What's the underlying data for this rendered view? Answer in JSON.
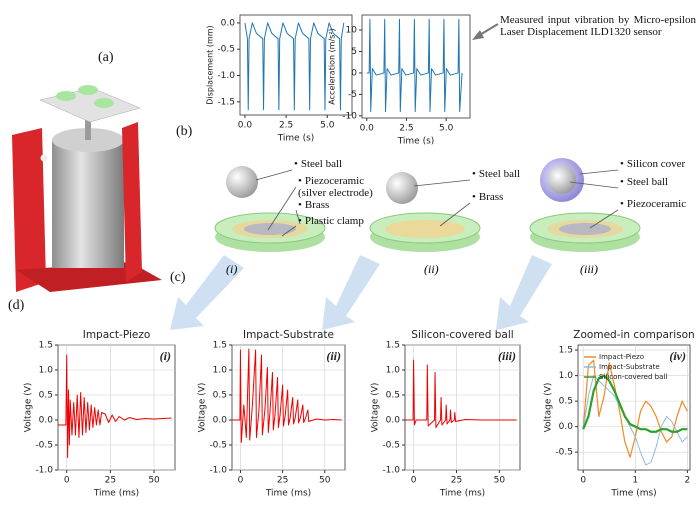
{
  "figure": {
    "panel_labels": [
      "(a)",
      "(b)",
      "(c)",
      "(d)"
    ],
    "sensor_note": "Measured input vibration by Micro-epsilon Laser Displacement ILD1320 sensor",
    "diagrams": [
      {
        "labels": [
          "Steel ball",
          "Piezoceramic (silver electrode)",
          "Brass",
          "Plastic clamp"
        ],
        "tag": "(i)"
      },
      {
        "labels": [
          "Steel ball",
          "Brass"
        ],
        "tag": "(ii)"
      },
      {
        "labels": [
          "Silicon cover",
          "Steel ball",
          "Piezoceramic"
        ],
        "tag": "(iii)"
      }
    ]
  },
  "chart_data": [
    {
      "type": "line",
      "xlabel": "Time (s)",
      "ylabel": "Displacement (mm)",
      "color": "#1f77b4",
      "xlim": [
        -0.3,
        6.5
      ],
      "ylim": [
        -1.75,
        0.15
      ],
      "xticks": [
        {
          "value": 0,
          "label": "0.0"
        },
        2.5,
        {
          "value": 5,
          "label": "5.0"
        }
      ],
      "yticks": [
        {
          "value": 0,
          "label": "0.0"
        },
        -0.5,
        {
          "value": -1,
          "label": "-1.0"
        },
        -1.5
      ],
      "x": [
        0,
        0.15,
        0.2,
        0.25,
        0.45,
        0.7,
        1.08,
        1.13,
        1.18,
        1.38,
        1.63,
        2.01,
        2.06,
        2.11,
        2.31,
        2.56,
        2.95,
        3.0,
        3.05,
        3.25,
        3.5,
        3.88,
        3.93,
        3.98,
        4.18,
        4.43,
        4.81,
        4.86,
        4.91,
        5.11,
        5.36,
        5.75,
        5.8,
        5.85,
        6.0
      ],
      "values": [
        0,
        -0.3,
        -1.65,
        -0.3,
        0,
        -0.2,
        -0.3,
        -1.65,
        -0.3,
        0,
        -0.2,
        -0.3,
        -1.65,
        -0.3,
        0,
        -0.2,
        -0.3,
        -1.65,
        -0.3,
        0,
        -0.2,
        -0.3,
        -1.65,
        -0.3,
        0,
        -0.2,
        -0.3,
        -1.65,
        -0.3,
        0,
        -0.2,
        -0.3,
        -1.65,
        -0.3,
        0
      ]
    },
    {
      "type": "line",
      "xlabel": "Time (s)",
      "ylabel": "Acceleration (m/s²)",
      "color": "#1f77b4",
      "xlim": [
        -0.3,
        6.5
      ],
      "ylim": [
        -10.5,
        13.5
      ],
      "xticks": [
        {
          "value": 0,
          "label": "0.0"
        },
        2.5,
        {
          "value": 5,
          "label": "5.0"
        }
      ],
      "yticks": [
        -10,
        -5,
        0,
        5,
        10
      ],
      "x": [
        0,
        0.15,
        0.2,
        0.25,
        0.35,
        0.6,
        1.08,
        1.13,
        1.18,
        1.28,
        1.53,
        2.01,
        2.06,
        2.11,
        2.21,
        2.46,
        2.95,
        3.0,
        3.05,
        3.15,
        3.4,
        3.88,
        3.93,
        3.98,
        4.08,
        4.33,
        4.81,
        4.86,
        4.91,
        5.01,
        5.26,
        5.75,
        5.8,
        5.85,
        6.0
      ],
      "values": [
        0,
        0,
        12.5,
        -9,
        1,
        -0.5,
        0,
        12.5,
        -9,
        1,
        -0.5,
        0,
        12.5,
        -9,
        1,
        -0.5,
        0,
        12.5,
        -9,
        1,
        -0.5,
        0,
        12.5,
        -9,
        1,
        -0.5,
        0,
        12.5,
        -9,
        1,
        -0.5,
        0,
        12.5,
        -9,
        0
      ]
    },
    {
      "type": "line",
      "title": "Impact-Piezo",
      "annotation": "(i)",
      "xlabel": "Time (ms)",
      "ylabel": "Voltage (V)",
      "color": "#ee0000",
      "grid": true,
      "xlim": [
        -5,
        62
      ],
      "ylim": [
        -1,
        1.5
      ],
      "xticks": [
        0,
        25,
        50
      ],
      "yticks": [
        1.5,
        {
          "value": 1,
          "label": "1.0"
        },
        0.5,
        {
          "value": 0,
          "label": "0.0"
        },
        -0.5,
        {
          "value": -1,
          "label": "-1.0"
        }
      ],
      "x": [
        -5,
        -0.5,
        0,
        0.5,
        1,
        1.5,
        2,
        3,
        4,
        5,
        6,
        7,
        8,
        9,
        10,
        11,
        12,
        13,
        14,
        15,
        16,
        17,
        18,
        19,
        20,
        22,
        24,
        26,
        28,
        30,
        33,
        36,
        40,
        45,
        50,
        55,
        60
      ],
      "values": [
        -0.1,
        -0.1,
        1.3,
        -0.75,
        0.6,
        -0.5,
        0.4,
        -0.3,
        0.35,
        -0.3,
        0.5,
        -0.35,
        0.55,
        -0.3,
        0.45,
        -0.25,
        0.35,
        -0.2,
        0.3,
        -0.15,
        0.25,
        -0.1,
        0.2,
        -0.1,
        0.15,
        0.12,
        -0.05,
        0.1,
        -0.03,
        0.07,
        0,
        0.05,
        0.01,
        0.03,
        0.02,
        0.03,
        0.04
      ]
    },
    {
      "type": "line",
      "title": "Impact-Substrate",
      "annotation": "(ii)",
      "xlabel": "Time (ms)",
      "ylabel": "Voltage (V)",
      "color": "#ee0000",
      "grid": true,
      "xlim": [
        -5,
        62
      ],
      "ylim": [
        -1,
        1.5
      ],
      "xticks": [
        0,
        25,
        50
      ],
      "yticks": [
        1.5,
        {
          "value": 1,
          "label": "1.0"
        },
        0.5,
        {
          "value": 0,
          "label": "0.0"
        },
        -0.5,
        {
          "value": -1,
          "label": "-1.0"
        }
      ],
      "x": [
        -5,
        -0.3,
        0,
        0.5,
        2,
        3.5,
        5,
        5.5,
        7,
        9,
        9.5,
        11,
        12.5,
        13,
        14.5,
        16,
        16.5,
        17.5,
        19,
        19.5,
        20.5,
        22,
        22.5,
        23.5,
        25,
        25.5,
        26.5,
        28,
        28.5,
        29.5,
        31,
        31.5,
        32.5,
        34,
        34.5,
        35.5,
        37,
        37.5,
        38.5,
        40,
        40.5,
        45,
        50,
        55,
        60
      ],
      "values": [
        0,
        0,
        1.4,
        -0.45,
        0.3,
        -0.35,
        1.42,
        -0.4,
        0.25,
        1.4,
        -0.35,
        0.2,
        1.3,
        -0.3,
        0.2,
        1.05,
        -0.25,
        0.15,
        0.95,
        -0.2,
        0.1,
        0.85,
        -0.15,
        0.1,
        0.7,
        -0.12,
        0.08,
        0.6,
        -0.1,
        0.05,
        0.45,
        -0.08,
        0.05,
        0.4,
        -0.06,
        0.04,
        0.3,
        -0.05,
        0.03,
        0.2,
        -0.03,
        0.02,
        0,
        0.01,
        0
      ]
    },
    {
      "type": "line",
      "title": "Silicon-covered ball",
      "annotation": "(iii)",
      "xlabel": "Time (ms)",
      "ylabel": "Voltage (V)",
      "color": "#ee0000",
      "grid": true,
      "xlim": [
        -5,
        62
      ],
      "ylim": [
        -1,
        1.5
      ],
      "xticks": [
        0,
        25,
        50
      ],
      "yticks": [
        1.5,
        {
          "value": 1,
          "label": "1.0"
        },
        0.5,
        {
          "value": 0,
          "label": "0.0"
        },
        -0.5,
        {
          "value": -1,
          "label": "-1.0"
        }
      ],
      "x": [
        -5,
        -0.3,
        0,
        0.5,
        1.5,
        7.7,
        8,
        8.5,
        12.2,
        12.5,
        13,
        15.7,
        16,
        16.5,
        18.7,
        19,
        19.5,
        21.2,
        21.5,
        22,
        23.7,
        24,
        24.5,
        30,
        40,
        50,
        60
      ],
      "values": [
        0,
        0,
        1.2,
        -0.1,
        0,
        0,
        1.1,
        -0.12,
        0,
        0.95,
        -0.15,
        0,
        0.45,
        -0.1,
        0,
        0.3,
        -0.08,
        0,
        0.2,
        -0.05,
        0,
        0.15,
        -0.03,
        0.01,
        0,
        0,
        0
      ]
    },
    {
      "type": "line",
      "title": "Zoomed-in comparison",
      "annotation": "(iv)",
      "xlabel": "Time (ms)",
      "ylabel": "Voltage (V)",
      "grid": true,
      "xlim": [
        -0.1,
        2.05
      ],
      "ylim": [
        -0.85,
        1.6
      ],
      "xticks": [
        0,
        1,
        2
      ],
      "yticks": [
        -0.5,
        {
          "value": 0,
          "label": "0.0"
        },
        0.5,
        {
          "value": 1,
          "label": "1.0"
        },
        1.5
      ],
      "x": [
        0,
        0.1,
        0.2,
        0.3,
        0.4,
        0.5,
        0.6,
        0.7,
        0.8,
        0.9,
        1.0,
        1.1,
        1.2,
        1.3,
        1.4,
        1.5,
        1.6,
        1.7,
        1.8,
        1.9,
        2.0
      ],
      "series": [
        {
          "name": "Impact-Piezo",
          "color": "#f08a24",
          "line_width": 1.2,
          "values": [
            -0.05,
            1.2,
            1.3,
            0.2,
            0.6,
            1.25,
            0.8,
            0.3,
            -0.3,
            -0.6,
            -0.2,
            0.3,
            0.5,
            0.4,
            0.2,
            -0.1,
            -0.3,
            -0.2,
            0.2,
            0.5,
            0.3
          ]
        },
        {
          "name": "Impact-Substrate",
          "color": "#8fbcd8",
          "line_width": 1,
          "values": [
            -0.05,
            0.6,
            1.0,
            0.9,
            0.8,
            0.7,
            0.6,
            0.4,
            0.2,
            0,
            -0.2,
            -0.5,
            -0.75,
            -0.7,
            -0.4,
            0,
            0.2,
            0.1,
            -0.1,
            -0.3,
            -0.2
          ]
        },
        {
          "name": "Silicon-covered ball",
          "color": "#2ca02c",
          "line_width": 2.2,
          "values": [
            -0.05,
            0.2,
            0.7,
            0.95,
            1.0,
            0.9,
            0.7,
            0.45,
            0.2,
            0.05,
            0,
            -0.05,
            -0.05,
            -0.1,
            -0.1,
            -0.05,
            -0.05,
            -0.1,
            -0.1,
            -0.05,
            -0.05
          ]
        }
      ]
    }
  ]
}
